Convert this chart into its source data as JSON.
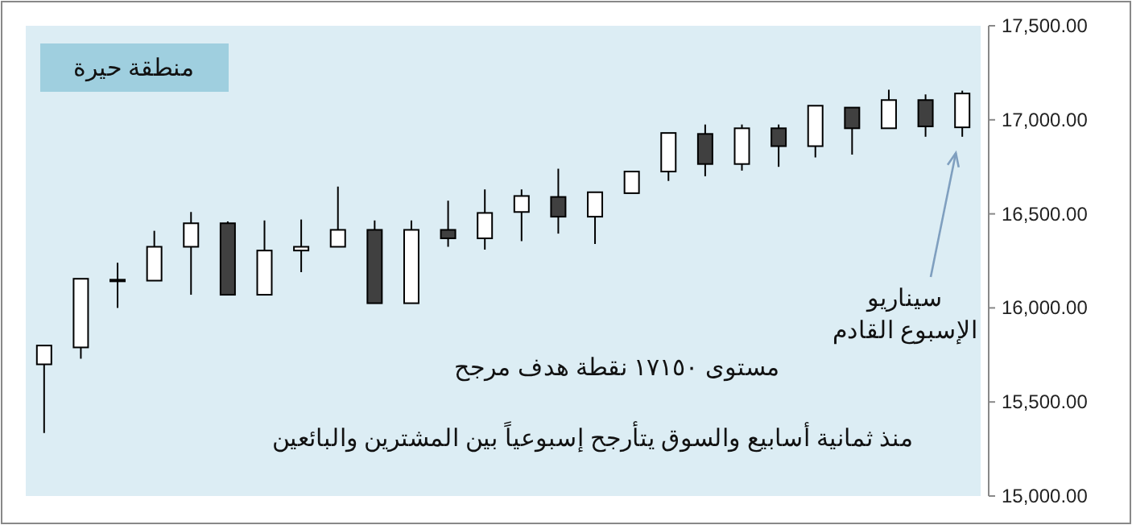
{
  "chart_data": {
    "type": "candlestick",
    "title": "منطقة حيرة",
    "categories": [
      null,
      null,
      null,
      null,
      null,
      null,
      null,
      null,
      null,
      null,
      null,
      null,
      null,
      null,
      null,
      null,
      null,
      null,
      null,
      null,
      null,
      null,
      null,
      null,
      null,
      null
    ],
    "ohlc": [
      [
        15700,
        15800,
        15335,
        15800
      ],
      [
        15790,
        16155,
        15730,
        16155
      ],
      [
        16150,
        16240,
        16000,
        16150
      ],
      [
        16145,
        16410,
        16145,
        16325
      ],
      [
        16325,
        16510,
        16070,
        16450
      ],
      [
        16450,
        16460,
        16070,
        16070
      ],
      [
        16070,
        16465,
        16070,
        16305
      ],
      [
        16305,
        16470,
        16190,
        16325
      ],
      [
        16325,
        16645,
        16325,
        16415
      ],
      [
        16415,
        16465,
        16025,
        16025
      ],
      [
        16025,
        16465,
        16025,
        16415
      ],
      [
        16415,
        16570,
        16325,
        16370
      ],
      [
        16370,
        16630,
        16310,
        16505
      ],
      [
        16510,
        16630,
        16355,
        16595
      ],
      [
        16590,
        16740,
        16395,
        16485
      ],
      [
        16485,
        16615,
        16340,
        16615
      ],
      [
        16610,
        16725,
        16610,
        16725
      ],
      [
        16725,
        16930,
        16675,
        16930
      ],
      [
        16925,
        16975,
        16700,
        16765
      ],
      [
        16765,
        16975,
        16730,
        16955
      ],
      [
        16955,
        16975,
        16750,
        16860
      ],
      [
        16860,
        17075,
        16800,
        17075
      ],
      [
        17065,
        17065,
        16815,
        16955
      ],
      [
        16955,
        17160,
        16955,
        17105
      ],
      [
        17105,
        17135,
        16910,
        16965
      ],
      [
        16960,
        17155,
        16910,
        17140
      ]
    ],
    "colors": [
      "#ffffff",
      "#ffffff",
      "#ffffff",
      "#ffffff",
      "#ffffff",
      "#404040",
      "#ffffff",
      "#ffffff",
      "#ffffff",
      "#404040",
      "#ffffff",
      "#404040",
      "#ffffff",
      "#ffffff",
      "#404040",
      "#ffffff",
      "#ffffff",
      "#ffffff",
      "#404040",
      "#ffffff",
      "#404040",
      "#ffffff",
      "#404040",
      "#ffffff",
      "#404040",
      "#ffffff"
    ],
    "ylim": [
      15000,
      17500
    ],
    "yticks": [
      {
        "value": 15000,
        "label": "15,000.00"
      },
      {
        "value": 15500,
        "label": "15,500.00"
      },
      {
        "value": 16000,
        "label": "16,000.00"
      },
      {
        "value": 16500,
        "label": "16,500.00"
      },
      {
        "value": 17000,
        "label": "17,000.00"
      },
      {
        "value": 17500,
        "label": "17,500.00"
      }
    ],
    "grid": false,
    "annotations": [
      "مستوى ١٧١٥٠ نقطة هدف مرجح",
      "منذ ثمانية أسابيع والسوق يتأرجح إسبوعياً بين المشترين والبائعين",
      "سيناريو\nالإسبوع القادم"
    ]
  }
}
